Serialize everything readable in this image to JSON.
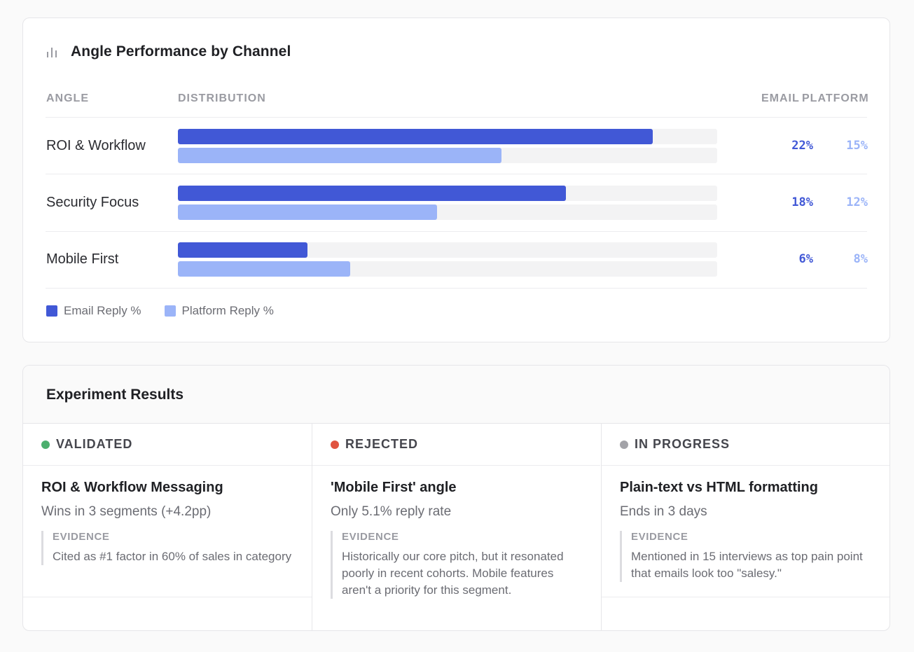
{
  "performance": {
    "title": "Angle Performance by Channel",
    "icon": "bar-chart-icon",
    "columns": {
      "angle": "ANGLE",
      "distribution": "DISTRIBUTION",
      "email": "EMAIL",
      "platform": "PLATFORM"
    },
    "rows": [
      {
        "label": "ROI & Workflow",
        "email_pct": "22%",
        "platform_pct": "15%",
        "email_fill": 0.88,
        "platform_fill": 0.6
      },
      {
        "label": "Security Focus",
        "email_pct": "18%",
        "platform_pct": "12%",
        "email_fill": 0.72,
        "platform_fill": 0.48
      },
      {
        "label": "Mobile First",
        "email_pct": "6%",
        "platform_pct": "8%",
        "email_fill": 0.24,
        "platform_fill": 0.32
      }
    ],
    "legend": {
      "email": "Email Reply %",
      "platform": "Platform Reply %"
    },
    "colors": {
      "email": "#4158d6",
      "platform": "#9bb4f8"
    }
  },
  "experiments": {
    "title": "Experiment Results",
    "columns": [
      {
        "status": "VALIDATED",
        "status_color": "#4caf6e",
        "title": "ROI & Workflow Messaging",
        "subtitle": "Wins in 3 segments (+4.2pp)",
        "evidence_label": "EVIDENCE",
        "evidence": "Cited as #1 factor in 60% of sales in category"
      },
      {
        "status": "REJECTED",
        "status_color": "#e05340",
        "title": "'Mobile First' angle",
        "subtitle": "Only 5.1% reply rate",
        "evidence_label": "EVIDENCE",
        "evidence": "Historically our core pitch, but it resonated poorly in recent cohorts. Mobile features aren't a priority for this segment."
      },
      {
        "status": "IN PROGRESS",
        "status_color": "#a3a3a8",
        "title": "Plain-text vs HTML formatting",
        "subtitle": "Ends in 3 days",
        "evidence_label": "EVIDENCE",
        "evidence": "Mentioned in 15 interviews as top pain point that emails look too \"salesy.\""
      }
    ]
  }
}
